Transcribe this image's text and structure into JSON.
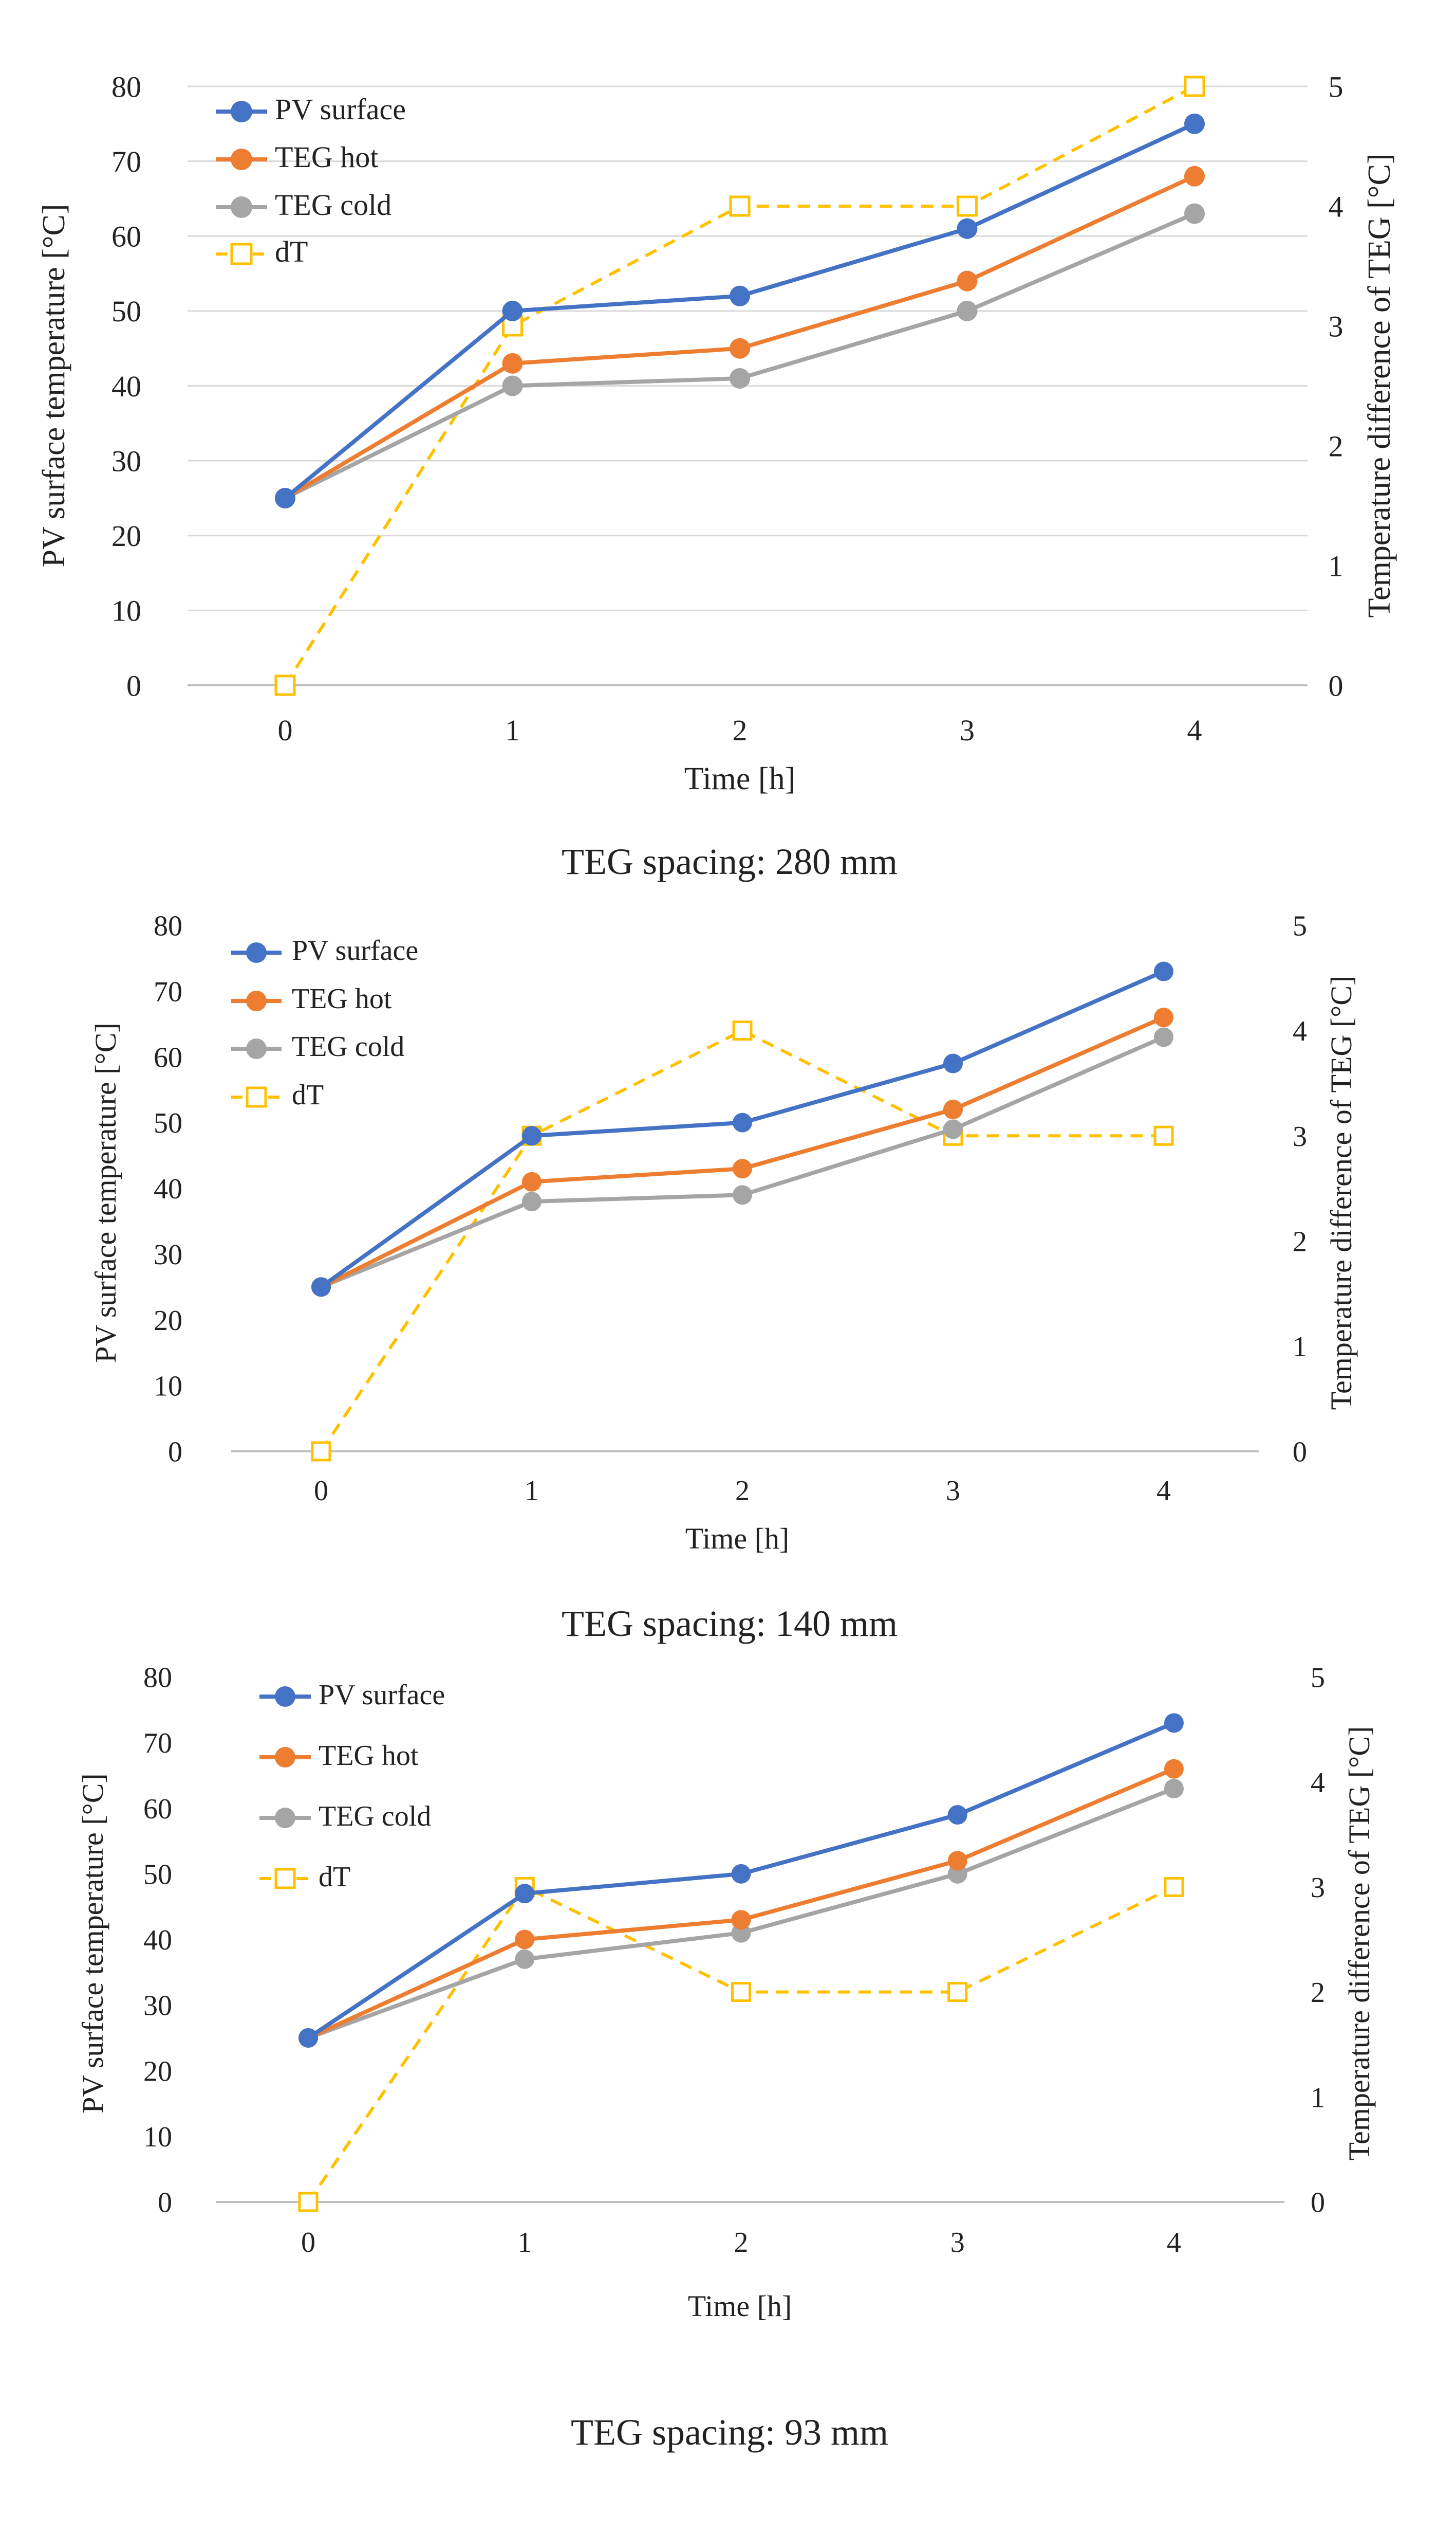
{
  "colors": {
    "pv": "#4472C4",
    "hot": "#ED7D31",
    "cold": "#A5A5A5",
    "dt": "#FFC000",
    "grid": "#D9D9D9",
    "text": "#222222"
  },
  "chart_data": [
    {
      "type": "line",
      "caption": "TEG spacing: 280 mm",
      "xlabel": "Time [h]",
      "ylabel": "PV surface temperature [°C]",
      "y2label": "Temperature difference of TEG [°C]",
      "x": [
        0,
        1,
        2,
        3,
        4
      ],
      "ylim": [
        0,
        80
      ],
      "y2lim": [
        0,
        5
      ],
      "yticks": [
        0,
        10,
        20,
        30,
        40,
        50,
        60,
        70,
        80
      ],
      "y2ticks": [
        0,
        1,
        2,
        3,
        4,
        5
      ],
      "grid": true,
      "legend_position": "top-left",
      "series": [
        {
          "name": "PV surface",
          "axis": "left",
          "values": [
            25,
            50,
            52,
            61,
            75
          ]
        },
        {
          "name": "TEG hot",
          "axis": "left",
          "values": [
            25,
            43,
            45,
            54,
            68
          ]
        },
        {
          "name": "TEG cold",
          "axis": "left",
          "values": [
            25,
            40,
            41,
            50,
            63
          ]
        },
        {
          "name": "dT",
          "axis": "right",
          "values": [
            0,
            3,
            4,
            4,
            5
          ]
        }
      ]
    },
    {
      "type": "line",
      "caption": "TEG spacing: 140 mm",
      "xlabel": "Time [h]",
      "ylabel": "PV surface temperature [°C]",
      "y2label": "Temperature difference of TEG [°C]",
      "x": [
        0,
        1,
        2,
        3,
        4
      ],
      "ylim": [
        0,
        80
      ],
      "y2lim": [
        0,
        5
      ],
      "yticks": [
        0,
        10,
        20,
        30,
        40,
        50,
        60,
        70,
        80
      ],
      "y2ticks": [
        0,
        1,
        2,
        3,
        4,
        5
      ],
      "grid": false,
      "legend_position": "top-left",
      "series": [
        {
          "name": "PV surface",
          "axis": "left",
          "values": [
            25,
            48,
            50,
            59,
            73
          ]
        },
        {
          "name": "TEG hot",
          "axis": "left",
          "values": [
            25,
            41,
            43,
            52,
            66
          ]
        },
        {
          "name": "TEG cold",
          "axis": "left",
          "values": [
            25,
            38,
            39,
            49,
            63
          ]
        },
        {
          "name": "dT",
          "axis": "right",
          "values": [
            0,
            3,
            4,
            3,
            3
          ]
        }
      ]
    },
    {
      "type": "line",
      "caption": "TEG spacing: 93 mm",
      "xlabel": "Time [h]",
      "ylabel": "PV surface temperature [°C]",
      "y2label": "Temperature difference of TEG [°C]",
      "x": [
        0,
        1,
        2,
        3,
        4
      ],
      "ylim": [
        0,
        80
      ],
      "y2lim": [
        0,
        5
      ],
      "yticks": [
        0,
        10,
        20,
        30,
        40,
        50,
        60,
        70,
        80
      ],
      "y2ticks": [
        0,
        1,
        2,
        3,
        4,
        5
      ],
      "grid": false,
      "legend_position": "top-left",
      "series": [
        {
          "name": "PV surface",
          "axis": "left",
          "values": [
            25,
            47,
            50,
            59,
            73
          ]
        },
        {
          "name": "TEG hot",
          "axis": "left",
          "values": [
            25,
            40,
            43,
            52,
            66
          ]
        },
        {
          "name": "TEG cold",
          "axis": "left",
          "values": [
            25,
            37,
            41,
            50,
            63
          ]
        },
        {
          "name": "dT",
          "axis": "right",
          "values": [
            0,
            3,
            2,
            2,
            3
          ]
        }
      ]
    }
  ]
}
